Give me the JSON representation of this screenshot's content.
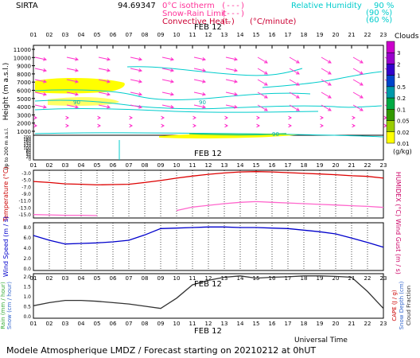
{
  "header": {
    "station": "SIRTA",
    "coords": "94.69347",
    "legend_items": [
      {
        "label": "0°C isotherm",
        "sample": "(---)",
        "color": "#ff3399"
      },
      {
        "label": "Snow-Rain Limit",
        "sample": "(---)",
        "color": "#ff3399"
      },
      {
        "label": "Convective Heat.",
        "sample": "(—)",
        "unit": "(°C/minute)",
        "color": "#cc0033"
      }
    ],
    "rh_label": "Relative Humidity",
    "rh_levels": [
      {
        "value": "90 %",
        "paren": "(90 %)"
      },
      {
        "value": "",
        "paren": "(60 %)"
      }
    ],
    "colors": {
      "rh": "#00cccc",
      "magenta": "#ff3399",
      "red": "#cc0000"
    }
  },
  "hours": [
    "01",
    "02",
    "03",
    "04",
    "05",
    "06",
    "07",
    "08",
    "09",
    "10",
    "11",
    "12",
    "13",
    "14",
    "15",
    "16",
    "17",
    "18",
    "19",
    "20",
    "21",
    "22",
    "23"
  ],
  "date_label": "FEB 12",
  "footer": "Modele Atmospherique LMDZ / Forecast starting on 20210212 at 0hUT",
  "xaxis_label": "Universal Time",
  "panels": {
    "clouds": {
      "ylabel": "Height (m a.s.l.)",
      "ylabel_lower": "Up to 200 m a.s.l.",
      "ticks_upper": [
        "11000",
        "10000",
        "9000",
        "8000",
        "7000",
        "6000",
        "5000",
        "4000",
        "3000",
        "2000",
        "1000"
      ],
      "ticks_lower": [
        "200",
        "180",
        "160",
        "140",
        "120",
        "100",
        "80",
        "60",
        "40",
        "20",
        "0"
      ],
      "colorbar": {
        "title": "Clouds",
        "unit": "(g/kg)",
        "labels": [
          "3",
          "2",
          "1",
          "0.5",
          "0.2",
          "0.1",
          "0.05",
          "0.02",
          "0.01"
        ],
        "colors": [
          "#cc00cc",
          "#9900cc",
          "#3300cc",
          "#0044cc",
          "#0099aa",
          "#00aa44",
          "#339900",
          "#99cc00",
          "#ffff00"
        ]
      },
      "contour_label": "90"
    },
    "temperature": {
      "ylabel": "Temperature (°C)",
      "ylabel_right": "HUMIDEX (°C)",
      "ticks": [
        "-3.0",
        "-5.0",
        "-7.0",
        "-9.0",
        "-11.0",
        "-13.0",
        "-15.0"
      ]
    },
    "wind": {
      "ylabel": "Wind Speed (m / s)",
      "ylabel_right": "Wind Gust (m / s)",
      "ticks": [
        "8.0",
        "6.0",
        "4.0",
        "2.0",
        "0.0"
      ]
    },
    "precip": {
      "ylabel_rain": "Rain (mm / hour)",
      "ylabel_snow": "Snow (cm / hour)",
      "ylabel_cape": "CAPE (J / g)",
      "ylabel_snowdepth": "Snow Depth (cm)",
      "ylabel_cloud": "Cloud Fraction",
      "ticks": [
        "2.0",
        "1.5",
        "1.0",
        "0.5",
        "0.0"
      ]
    }
  },
  "chart_data": [
    {
      "type": "line",
      "panel": "temperature",
      "x": [
        "01",
        "02",
        "03",
        "04",
        "05",
        "06",
        "07",
        "08",
        "09",
        "10",
        "11",
        "12",
        "13",
        "14",
        "15",
        "16",
        "17",
        "18",
        "19",
        "20",
        "21",
        "22",
        "23"
      ],
      "ylim": [
        -16,
        -2
      ],
      "series": [
        {
          "values": [
            -5.3,
            -5.6,
            -6.0,
            -6.1,
            -6.3,
            -6.2,
            -6.1,
            -5.6,
            -5.0,
            -4.3,
            -3.7,
            -3.2,
            -2.8,
            -2.5,
            -2.4,
            -2.5,
            -2.7,
            -2.9,
            -3.1,
            -3.3,
            -3.6,
            -3.8,
            -4.3
          ],
          "color": "#dd0000"
        },
        {
          "values": [
            -15.0,
            -15.1,
            -15.2,
            -15.2,
            -15.3,
            null,
            null,
            null,
            null,
            -13.8,
            -12.8,
            -12.3,
            -11.8,
            -11.4,
            -11.2,
            -11.4,
            -11.6,
            -11.8,
            -12.0,
            -12.2,
            -12.4,
            -12.6,
            -12.9
          ],
          "color": "#ff66cc"
        }
      ]
    },
    {
      "type": "line",
      "panel": "wind",
      "x": [
        "01",
        "02",
        "03",
        "04",
        "05",
        "06",
        "07",
        "08",
        "09",
        "10",
        "11",
        "12",
        "13",
        "14",
        "15",
        "16",
        "17",
        "18",
        "19",
        "20",
        "21",
        "22",
        "23"
      ],
      "ylim": [
        0,
        9
      ],
      "series": [
        {
          "values": [
            6.6,
            5.7,
            5.0,
            5.1,
            5.2,
            5.4,
            5.7,
            6.7,
            7.9,
            8.0,
            8.1,
            8.2,
            8.2,
            8.1,
            8.1,
            8.0,
            7.9,
            7.6,
            7.3,
            6.9,
            6.1,
            5.3,
            4.4
          ],
          "color": "#0000cc"
        }
      ]
    },
    {
      "type": "line",
      "panel": "precip",
      "x": [
        "01",
        "02",
        "03",
        "04",
        "05",
        "06",
        "07",
        "08",
        "09",
        "10",
        "11",
        "12",
        "13",
        "14",
        "15",
        "16",
        "17",
        "18",
        "19",
        "20",
        "21",
        "22",
        "23"
      ],
      "ylim": [
        0,
        1
      ],
      "series": [
        {
          "values": [
            0.28,
            0.35,
            0.4,
            0.4,
            0.38,
            0.35,
            0.32,
            0.27,
            0.22,
            0.45,
            0.75,
            0.85,
            0.92,
            0.95,
            0.9,
            0.92,
            0.93,
            0.95,
            0.95,
            0.94,
            0.92,
            0.6,
            0.22
          ],
          "color": "#333333"
        }
      ]
    }
  ]
}
